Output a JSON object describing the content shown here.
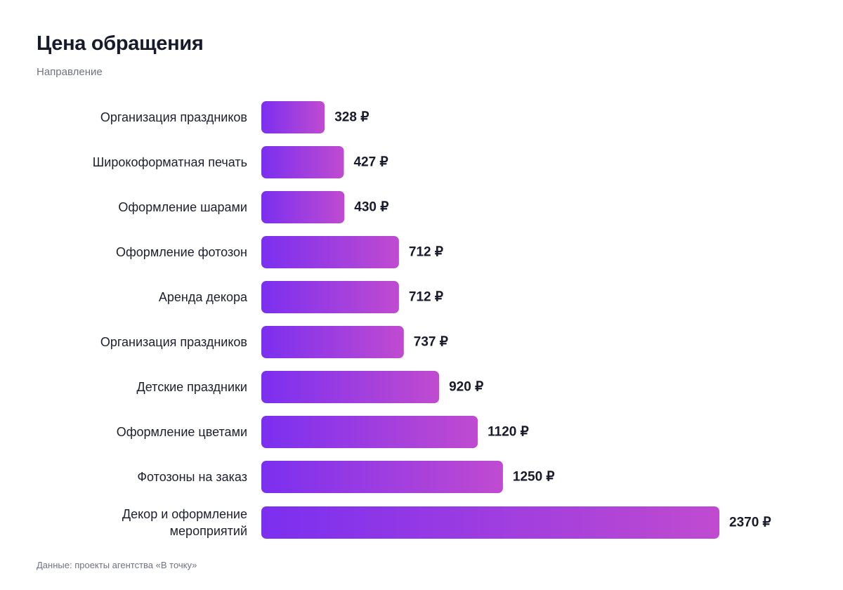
{
  "header": {
    "title": "Цена обращения",
    "subtitle": "Направление"
  },
  "footer": {
    "source": "Данные: проекты агентства «В точку»"
  },
  "colors": {
    "bar_start": "#7b2ff0",
    "bar_end": "#c04bd0",
    "text": "#171a2b",
    "muted": "#6f7283"
  },
  "chart_data": {
    "type": "bar",
    "orientation": "horizontal",
    "title": "Цена обращения",
    "subtitle": "Направление",
    "currency": "₽",
    "categories": [
      [
        "Организация праздников"
      ],
      [
        "Широкоформатная печать"
      ],
      [
        "Оформление шарами"
      ],
      [
        "Оформление фотозон"
      ],
      [
        "Аренда декора"
      ],
      [
        "Организация праздников"
      ],
      [
        "Детские праздники"
      ],
      [
        "Оформление цветами"
      ],
      [
        "Фотозоны на заказ"
      ],
      [
        "Декор и оформление",
        "мероприятий"
      ]
    ],
    "values": [
      328,
      427,
      430,
      712,
      712,
      737,
      920,
      1120,
      1250,
      2370
    ],
    "value_labels": [
      "328 ₽",
      "427 ₽",
      "430 ₽",
      "712 ₽",
      "712 ₽",
      "737 ₽",
      "920 ₽",
      "1120 ₽",
      "1250 ₽",
      "2370 ₽"
    ],
    "xlim": [
      0,
      2370
    ],
    "grid": false,
    "legend": "none"
  }
}
